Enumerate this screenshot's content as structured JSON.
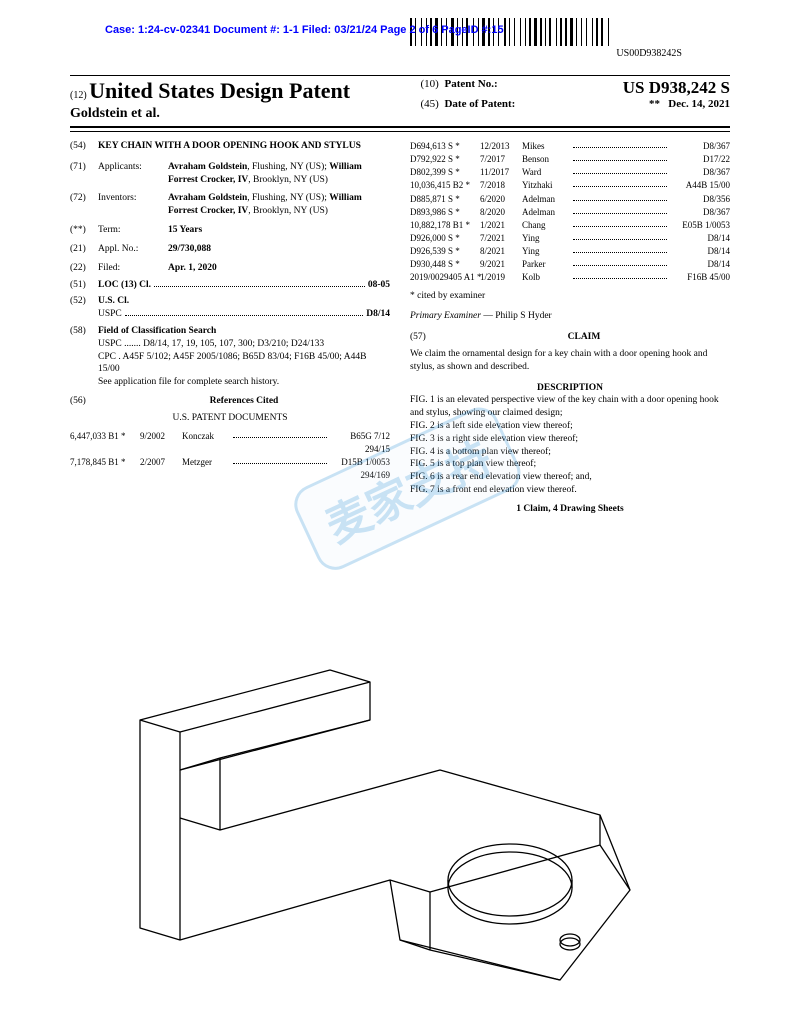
{
  "case_header": "Case: 1:24-cv-02341 Document #: 1-1 Filed: 03/21/24 Page 2 of 6 PageID #:15",
  "barcode_number": "US00D938242S",
  "title": {
    "num12": "(12)",
    "main": "United States Design Patent",
    "authors": "Goldstein et al.",
    "num10": "(10)",
    "patent_no_label": "Patent No.:",
    "patent_no": "US D938,242 S",
    "num45": "(45)",
    "date_label": "Date of Patent:",
    "date_asterisk": "**",
    "date_value": "Dec. 14, 2021"
  },
  "left_fields": {
    "f54_num": "(54)",
    "f54_title": "KEY CHAIN WITH A DOOR OPENING HOOK AND STYLUS",
    "f71_num": "(71)",
    "f71_label": "Applicants:",
    "f71_val": "Avraham Goldstein, Flushing, NY (US); William Forrest Crocker, IV, Brooklyn, NY (US)",
    "f72_num": "(72)",
    "f72_label": "Inventors:",
    "f72_val": "Avraham Goldstein, Flushing, NY (US); William Forrest Crocker, IV, Brooklyn, NY (US)",
    "fterm_num": "(**)",
    "fterm_label": "Term:",
    "fterm_val": "15 Years",
    "f21_num": "(21)",
    "f21_label": "Appl. No.:",
    "f21_val": "29/730,088",
    "f22_num": "(22)",
    "f22_label": "Filed:",
    "f22_val": "Apr. 1, 2020",
    "f51_num": "(51)",
    "f51_label": "LOC (13) Cl.",
    "f51_val": "08-05",
    "f52_num": "(52)",
    "f52_label": "U.S. Cl.",
    "f52_uspc": "USPC",
    "f52_uspc_val": "D8/14",
    "f58_num": "(58)",
    "f58_label": "Field of Classification Search",
    "f58_uspc": "USPC ....... D8/14, 17, 19, 105, 107, 300; D3/210; D24/133",
    "f58_cpc": "CPC . A45F 5/102; A45F 2005/1086; B65D 83/04; F16B 45/00; A44B 15/00",
    "f58_note": "See application file for complete search history.",
    "f56_num": "(56)",
    "f56_label": "References Cited",
    "f56_sub": "U.S. PATENT DOCUMENTS",
    "refs_left": [
      {
        "id": "6,447,033 B1 *",
        "date": "9/2002",
        "name": "Konczak",
        "cls": "B65G 7/12",
        "cls2": "294/15"
      },
      {
        "id": "7,178,845 B1 *",
        "date": "2/2007",
        "name": "Metzger",
        "cls": "D15B 1/0053",
        "cls2": "294/169"
      }
    ]
  },
  "right_fields": {
    "refs_right": [
      {
        "id": "D694,613 S *",
        "date": "12/2013",
        "name": "Mikes",
        "cls": "D8/367"
      },
      {
        "id": "D792,922 S *",
        "date": "7/2017",
        "name": "Benson",
        "cls": "D17/22"
      },
      {
        "id": "D802,399 S *",
        "date": "11/2017",
        "name": "Ward",
        "cls": "D8/367"
      },
      {
        "id": "10,036,415 B2 *",
        "date": "7/2018",
        "name": "Yitzhaki",
        "cls": "A44B 15/00"
      },
      {
        "id": "D885,871 S *",
        "date": "6/2020",
        "name": "Adelman",
        "cls": "D8/356"
      },
      {
        "id": "D893,986 S *",
        "date": "8/2020",
        "name": "Adelman",
        "cls": "D8/367"
      },
      {
        "id": "10,882,178 B1 *",
        "date": "1/2021",
        "name": "Chang",
        "cls": "E05B 1/0053"
      },
      {
        "id": "D926,000 S *",
        "date": "7/2021",
        "name": "Ying",
        "cls": "D8/14"
      },
      {
        "id": "D926,539 S *",
        "date": "8/2021",
        "name": "Ying",
        "cls": "D8/14"
      },
      {
        "id": "D930,448 S *",
        "date": "9/2021",
        "name": "Parker",
        "cls": "D8/14"
      },
      {
        "id": "2019/0029405 A1 *",
        "date": "1/2019",
        "name": "Kolb",
        "cls": "F16B 45/00"
      }
    ],
    "cited_note": "* cited by examiner",
    "examiner_label": "Primary Examiner",
    "examiner_name": " — Philip S Hyder",
    "f57_num": "(57)",
    "f57_label": "CLAIM",
    "claim_text": "We claim the ornamental design for a key chain with a door opening hook and stylus, as shown and described.",
    "desc_label": "DESCRIPTION",
    "figs": [
      "FIG. 1 is an elevated perspective view of the key chain with a door opening hook and stylus, showing our claimed design;",
      "FIG. 2 is a left side elevation view thereof;",
      "FIG. 3 is a right side elevation view thereof;",
      "FIG. 4 is a bottom plan view thereof;",
      "FIG. 5 is a top plan view thereof;",
      "FIG. 6 is a rear end elevation view thereof; and,",
      "FIG. 7 is a front end elevation view thereof."
    ],
    "claim_count": "1 Claim, 4 Drawing Sheets"
  },
  "watermark_text": "麦家支持"
}
